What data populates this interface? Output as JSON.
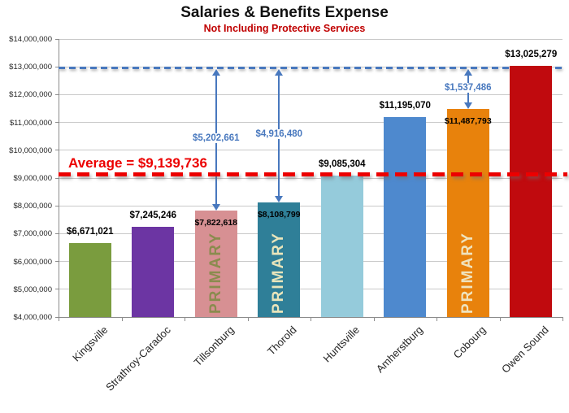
{
  "chart_data": {
    "type": "bar",
    "title": "Salaries & Benefits Expense",
    "subtitle": "Not Including Protective Services",
    "xlabel": "",
    "ylabel": "",
    "grid": true,
    "legend": "none",
    "y_axis": {
      "min": 4000000,
      "max": 14000000,
      "step": 1000000,
      "tick_labels": [
        "$14,000,000",
        "$13,000,000",
        "$12,000,000",
        "$11,000,000",
        "$10,000,000",
        "$9,000,000",
        "$8,000,000",
        "$7,000,000",
        "$6,000,000",
        "$5,000,000",
        "$4,000,000"
      ]
    },
    "categories": [
      "Kingsville",
      "Strathroy-Caradoc",
      "Tillsonburg",
      "Thorold",
      "Huntsville",
      "Amherstburg",
      "Cobourg",
      "Owen Sound"
    ],
    "bars": [
      {
        "name": "Kingsville",
        "value": 6671021,
        "label": "$6,671,021",
        "color": "#7A9C3E",
        "label_position": "above",
        "overlay": null,
        "overlay_color": null
      },
      {
        "name": "Strathroy-Caradoc",
        "value": 7245246,
        "label": "$7,245,246",
        "color": "#6C35A3",
        "label_position": "above",
        "overlay": null,
        "overlay_color": null
      },
      {
        "name": "Tillsonburg",
        "value": 7822618,
        "label": "$7,822,618",
        "color": "#D79093",
        "label_position": "inside",
        "overlay": "PRIMARY",
        "overlay_color": "#8A8B4E"
      },
      {
        "name": "Thorold",
        "value": 8108799,
        "label": "$8,108,799",
        "color": "#2F7F98",
        "label_position": "inside",
        "overlay": "PRIMARY",
        "overlay_color": "#E9E5BB"
      },
      {
        "name": "Huntsville",
        "value": 9085304,
        "label": "$9,085,304",
        "color": "#95CBDB",
        "label_position": "above",
        "overlay": null,
        "overlay_color": null
      },
      {
        "name": "Amherstburg",
        "value": 11195070,
        "label": "$11,195,070",
        "color": "#4E89CE",
        "label_position": "above",
        "overlay": null,
        "overlay_color": null
      },
      {
        "name": "Cobourg",
        "value": 11487793,
        "label": "$11,487,793",
        "color": "#E8820C",
        "label_position": "inside",
        "overlay": "PRIMARY",
        "overlay_color": "#EFE3BE"
      },
      {
        "name": "Owen Sound",
        "value": 13025279,
        "label": "$13,025,279",
        "color": "#C00A0E",
        "label_position": "above",
        "overlay": null,
        "overlay_color": null
      }
    ],
    "average_line": {
      "label": "Average = $9,139,736",
      "value": 9139736,
      "color": "#EC0000"
    },
    "reference_line": {
      "value": 12965000,
      "color": "#4878BE"
    },
    "arrows": [
      {
        "target": "Tillsonburg",
        "label": "$5,202,661",
        "color": "#4878BE"
      },
      {
        "target": "Thorold",
        "label": "$4,916,480",
        "color": "#4878BE"
      },
      {
        "target": "Cobourg",
        "label": "$1,537,486",
        "color": "#4878BE"
      }
    ]
  }
}
